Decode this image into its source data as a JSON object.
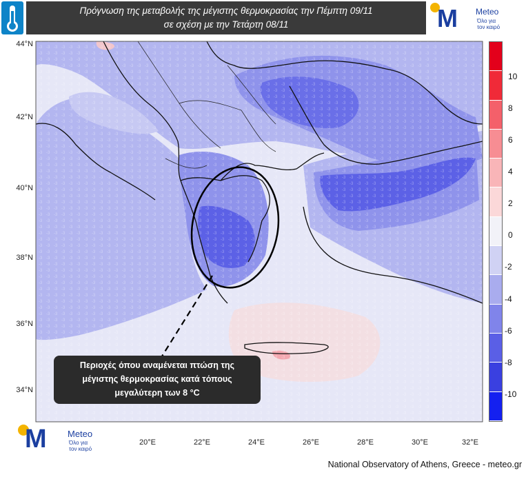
{
  "header": {
    "title_line1": "Πρόγνωση της μεταβολής της μέγιστης θερμοκρασίας την Πέμπτη 09/11",
    "title_line2": "σε σχέση με την Τετάρτη 08/11"
  },
  "logo": {
    "name": "Meteo",
    "tagline_line1": "Όλο για",
    "tagline_line2": "τον καιρό"
  },
  "map": {
    "lat_labels": [
      "44°N",
      "42°N",
      "40°N",
      "38°N",
      "36°N",
      "34°N"
    ],
    "lon_labels": [
      "20°E",
      "22°E",
      "24°E",
      "26°E",
      "28°E",
      "30°E",
      "32°E"
    ]
  },
  "colorbar": {
    "tick_labels": [
      "10",
      "8",
      "6",
      "4",
      "2",
      "0",
      "-2",
      "-4",
      "-6",
      "-8",
      "-10"
    ],
    "colors": [
      "#e3001b",
      "#f02a38",
      "#f4606a",
      "#f78d93",
      "#f9b5b8",
      "#fbd8d9",
      "#f2f2f8",
      "#d0d2f4",
      "#a9acee",
      "#8084ea",
      "#5a5fe6",
      "#3a40e0",
      "#1420f0"
    ]
  },
  "callout": {
    "line1": "Περιοχές όπου αναμένεται πτώση της",
    "line2": "μέγιστης θερμοκρασίας  κατά τόπους",
    "line3": "μεγαλύτερη των 8 °C"
  },
  "credit": "National Observatory of Athens, Greece - meteo.gr"
}
